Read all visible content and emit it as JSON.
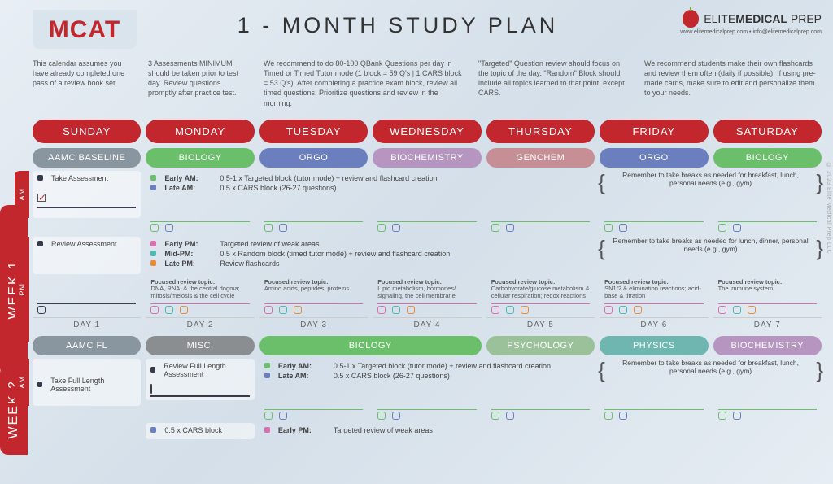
{
  "header": {
    "mcat": "MCAT",
    "title": "1 - MONTH STUDY PLAN",
    "brand_elite": "ELITE",
    "brand_medical": "MEDICAL",
    "brand_prep": " PREP",
    "brand_sub": "www.elitemedicalprep.com  •  info@elitemedicalprep.com"
  },
  "guidance": {
    "g1": "This calendar assumes you have already completed one pass of a review book set.",
    "g2": "3 Assessments MINIMUM should be taken prior to test day. Review questions promptly after practice test.",
    "g3": "We recommend to do 80-100 QBank Questions per day in Timed or Timed Tutor mode (1 block = 59 Q's | 1 CARS block = 53 Q's). After completing a practice exam block, review all timed questions. Prioritize questions and review in the morning.",
    "g4": "\"Targeted\" Question review should focus on the topic of the day. \"Random\" Block should include all topics learned to that point, except CARS.",
    "g5": "We recommend students make their own flashcards and review them often (daily if possible). If using pre-made cards, make sure to edit and personalize them to your needs."
  },
  "days": [
    "SUNDAY",
    "MONDAY",
    "TUESDAY",
    "WEDNESDAY",
    "THURSDAY",
    "FRIDAY",
    "SATURDAY"
  ],
  "colors": {
    "red": "#c1272d",
    "gray": "#7a868f",
    "biology": "#6bbf6b",
    "orgo": "#6b7fbf",
    "biochem": "#b695c0",
    "genchem": "#c68f95",
    "misc": "#8b8e91",
    "psych": "#9bc19b",
    "physics": "#6fb6b0",
    "pink": "#d96fb0",
    "teal": "#4fb8b3",
    "orange": "#e88b3a",
    "aamc": "#8a969f"
  },
  "week1": {
    "label": "WEEK 1",
    "am_label": "AM",
    "pm_label": "PM",
    "subjects": [
      {
        "name": "AAMC BASELINE",
        "color": "#8a969f"
      },
      {
        "name": "BIOLOGY",
        "color": "#6bbf6b"
      },
      {
        "name": "ORGO",
        "color": "#6b7fbf"
      },
      {
        "name": "BIOCHEMISTRY",
        "color": "#b695c0"
      },
      {
        "name": "GENCHEM",
        "color": "#c68f95"
      },
      {
        "name": "ORGO",
        "color": "#6b7fbf"
      },
      {
        "name": "BIOLOGY",
        "color": "#6bbf6b"
      }
    ],
    "sunday_am": "Take Assessment",
    "sunday_pm": "Review Assessment",
    "am_lines": [
      {
        "bul": "#6bbf6b",
        "time": "Early AM:",
        "text": "0.5-1 x Targeted block (tutor mode) + review and flashcard creation"
      },
      {
        "bul": "#6b7fbf",
        "time": "Late AM:",
        "text": "0.5 x CARS block (26-27 questions)"
      }
    ],
    "pm_lines": [
      {
        "bul": "#d96fb0",
        "time": "Early PM:",
        "text": "Targeted review of weak areas"
      },
      {
        "bul": "#4fb8b3",
        "time": "Mid-PM:",
        "text": "0.5 x Random block (timed tutor mode) + review and flashcard creation"
      },
      {
        "bul": "#e88b3a",
        "time": "Late PM:",
        "text": "Review flashcards"
      }
    ],
    "remember_am": "Remember to take breaks as needed for breakfast, lunch, personal needs (e.g., gym)",
    "remember_pm": "Remember to take breaks as needed for lunch, dinner, personal needs (e.g., gym)",
    "focused_label": "Focused review topic:",
    "focused": [
      "DNA, RNA, & the central dogma; mitosis/meiosis & the cell cycle",
      "Amino acids, peptides, proteins",
      "Lipid metabolism, hormones/ signaling, the cell membrane",
      "Carbohydrate/glucose metabolism & cellular respiration; redox reactions",
      "SN1/2 & elimination reactions; acid-base & titration",
      "The immune system"
    ],
    "day_nums": [
      "DAY 1",
      "DAY 2",
      "DAY 3",
      "DAY 4",
      "DAY 5",
      "DAY 6",
      "DAY 7"
    ]
  },
  "week2": {
    "label": "WEEK 2",
    "subjects": [
      {
        "name": "AAMC FL",
        "color": "#8a969f"
      },
      {
        "name": "MISC.",
        "color": "#8b8e91"
      },
      {
        "name": "BIOLOGY",
        "color": "#6bbf6b",
        "span": 2
      },
      {
        "name": "PSYCHOLOGY",
        "color": "#9bc19b"
      },
      {
        "name": "PHYSICS",
        "color": "#6fb6b0"
      },
      {
        "name": "BIOCHEMISTRY",
        "color": "#b695c0"
      }
    ],
    "sunday": "Take Full Length Assessment",
    "mon_task": "Review Full Length Assessment",
    "mon_pm": "0.5 x CARS block",
    "am_lines": [
      {
        "bul": "#6bbf6b",
        "time": "Early AM:",
        "text": "0.5-1 x Targeted block (tutor mode) + review and flashcard creation"
      },
      {
        "bul": "#6b7fbf",
        "time": "Late AM:",
        "text": "0.5 x CARS block (26-27 questions)"
      }
    ],
    "pm_start": {
      "bul": "#d96fb0",
      "time": "Early PM:",
      "text": "Targeted review of weak areas"
    },
    "remember_am": "Remember to take breaks as needed for breakfast, lunch, personal needs (e.g., gym)"
  },
  "copyright": "© 2023 Elite Medical Prep LLC"
}
